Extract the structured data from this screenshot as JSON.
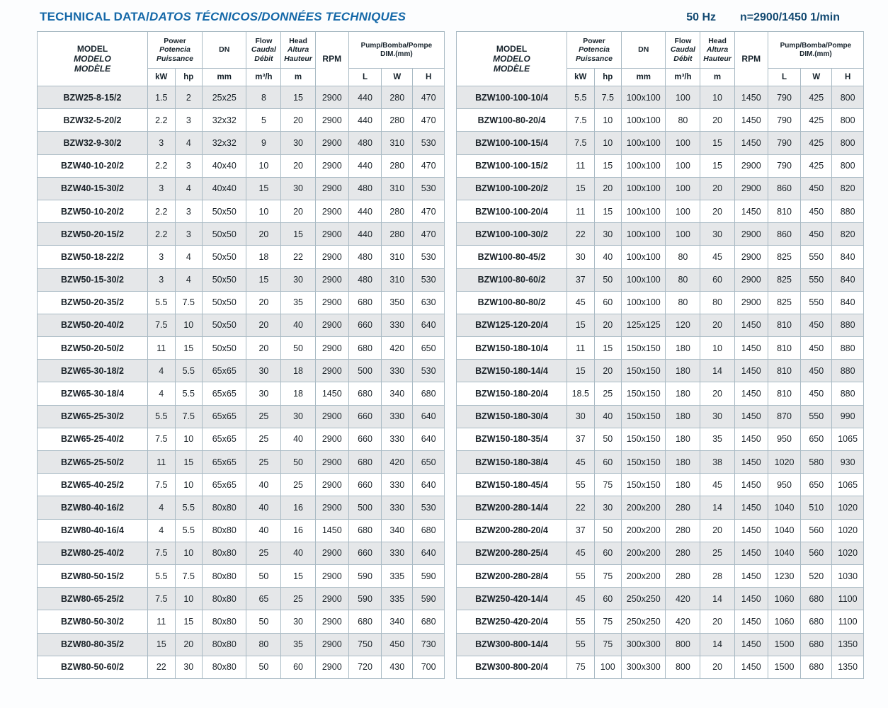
{
  "page": {
    "title_main": "TECHNICAL DATA/",
    "title_intl": "DATOS TÉCNICOS/DONNÉES TECHNIQUES",
    "frequency": "50 Hz",
    "speed": "n=2900/1450 1/min"
  },
  "header": {
    "model_lines": [
      "MODEL",
      "MODELO",
      "MODÈLE"
    ],
    "power_lines": [
      "Power",
      "Potencia",
      "Puissance"
    ],
    "dn": "DN",
    "flow_lines": [
      "Flow",
      "Caudal",
      "Débit"
    ],
    "head_lines": [
      "Head",
      "Altura",
      "Hauteur"
    ],
    "rpm": "RPM",
    "dim_line1": "Pump/Bomba/Pompe",
    "dim_line2": "DIM.(mm)",
    "units": {
      "kw": "kW",
      "hp": "hp",
      "mm": "mm",
      "flow": "m³/h",
      "m": "m",
      "l": "L",
      "w": "W",
      "h": "H"
    }
  },
  "left_table": {
    "rows": [
      [
        "BZW25-8-15/2",
        "1.5",
        "2",
        "25x25",
        "8",
        "15",
        "2900",
        "440",
        "280",
        "470"
      ],
      [
        "BZW32-5-20/2",
        "2.2",
        "3",
        "32x32",
        "5",
        "20",
        "2900",
        "440",
        "280",
        "470"
      ],
      [
        "BZW32-9-30/2",
        "3",
        "4",
        "32x32",
        "9",
        "30",
        "2900",
        "480",
        "310",
        "530"
      ],
      [
        "BZW40-10-20/2",
        "2.2",
        "3",
        "40x40",
        "10",
        "20",
        "2900",
        "440",
        "280",
        "470"
      ],
      [
        "BZW40-15-30/2",
        "3",
        "4",
        "40x40",
        "15",
        "30",
        "2900",
        "480",
        "310",
        "530"
      ],
      [
        "BZW50-10-20/2",
        "2.2",
        "3",
        "50x50",
        "10",
        "20",
        "2900",
        "440",
        "280",
        "470"
      ],
      [
        "BZW50-20-15/2",
        "2.2",
        "3",
        "50x50",
        "20",
        "15",
        "2900",
        "440",
        "280",
        "470"
      ],
      [
        "BZW50-18-22/2",
        "3",
        "4",
        "50x50",
        "18",
        "22",
        "2900",
        "480",
        "310",
        "530"
      ],
      [
        "BZW50-15-30/2",
        "3",
        "4",
        "50x50",
        "15",
        "30",
        "2900",
        "480",
        "310",
        "530"
      ],
      [
        "BZW50-20-35/2",
        "5.5",
        "7.5",
        "50x50",
        "20",
        "35",
        "2900",
        "680",
        "350",
        "630"
      ],
      [
        "BZW50-20-40/2",
        "7.5",
        "10",
        "50x50",
        "20",
        "40",
        "2900",
        "660",
        "330",
        "640"
      ],
      [
        "BZW50-20-50/2",
        "11",
        "15",
        "50x50",
        "20",
        "50",
        "2900",
        "680",
        "420",
        "650"
      ],
      [
        "BZW65-30-18/2",
        "4",
        "5.5",
        "65x65",
        "30",
        "18",
        "2900",
        "500",
        "330",
        "530"
      ],
      [
        "BZW65-30-18/4",
        "4",
        "5.5",
        "65x65",
        "30",
        "18",
        "1450",
        "680",
        "340",
        "680"
      ],
      [
        "BZW65-25-30/2",
        "5.5",
        "7.5",
        "65x65",
        "25",
        "30",
        "2900",
        "660",
        "330",
        "640"
      ],
      [
        "BZW65-25-40/2",
        "7.5",
        "10",
        "65x65",
        "25",
        "40",
        "2900",
        "660",
        "330",
        "640"
      ],
      [
        "BZW65-25-50/2",
        "11",
        "15",
        "65x65",
        "25",
        "50",
        "2900",
        "680",
        "420",
        "650"
      ],
      [
        "BZW65-40-25/2",
        "7.5",
        "10",
        "65x65",
        "40",
        "25",
        "2900",
        "660",
        "330",
        "640"
      ],
      [
        "BZW80-40-16/2",
        "4",
        "5.5",
        "80x80",
        "40",
        "16",
        "2900",
        "500",
        "330",
        "530"
      ],
      [
        "BZW80-40-16/4",
        "4",
        "5.5",
        "80x80",
        "40",
        "16",
        "1450",
        "680",
        "340",
        "680"
      ],
      [
        "BZW80-25-40/2",
        "7.5",
        "10",
        "80x80",
        "25",
        "40",
        "2900",
        "660",
        "330",
        "640"
      ],
      [
        "BZW80-50-15/2",
        "5.5",
        "7.5",
        "80x80",
        "50",
        "15",
        "2900",
        "590",
        "335",
        "590"
      ],
      [
        "BZW80-65-25/2",
        "7.5",
        "10",
        "80x80",
        "65",
        "25",
        "2900",
        "590",
        "335",
        "590"
      ],
      [
        "BZW80-50-30/2",
        "11",
        "15",
        "80x80",
        "50",
        "30",
        "2900",
        "680",
        "340",
        "680"
      ],
      [
        "BZW80-80-35/2",
        "15",
        "20",
        "80x80",
        "80",
        "35",
        "2900",
        "750",
        "450",
        "730"
      ],
      [
        "BZW80-50-60/2",
        "22",
        "30",
        "80x80",
        "50",
        "60",
        "2900",
        "720",
        "430",
        "700"
      ]
    ]
  },
  "right_table": {
    "rows": [
      [
        "BZW100-100-10/4",
        "5.5",
        "7.5",
        "100x100",
        "100",
        "10",
        "1450",
        "790",
        "425",
        "800"
      ],
      [
        "BZW100-80-20/4",
        "7.5",
        "10",
        "100x100",
        "80",
        "20",
        "1450",
        "790",
        "425",
        "800"
      ],
      [
        "BZW100-100-15/4",
        "7.5",
        "10",
        "100x100",
        "100",
        "15",
        "1450",
        "790",
        "425",
        "800"
      ],
      [
        "BZW100-100-15/2",
        "11",
        "15",
        "100x100",
        "100",
        "15",
        "2900",
        "790",
        "425",
        "800"
      ],
      [
        "BZW100-100-20/2",
        "15",
        "20",
        "100x100",
        "100",
        "20",
        "2900",
        "860",
        "450",
        "820"
      ],
      [
        "BZW100-100-20/4",
        "11",
        "15",
        "100x100",
        "100",
        "20",
        "1450",
        "810",
        "450",
        "880"
      ],
      [
        "BZW100-100-30/2",
        "22",
        "30",
        "100x100",
        "100",
        "30",
        "2900",
        "860",
        "450",
        "820"
      ],
      [
        "BZW100-80-45/2",
        "30",
        "40",
        "100x100",
        "80",
        "45",
        "2900",
        "825",
        "550",
        "840"
      ],
      [
        "BZW100-80-60/2",
        "37",
        "50",
        "100x100",
        "80",
        "60",
        "2900",
        "825",
        "550",
        "840"
      ],
      [
        "BZW100-80-80/2",
        "45",
        "60",
        "100x100",
        "80",
        "80",
        "2900",
        "825",
        "550",
        "840"
      ],
      [
        "BZW125-120-20/4",
        "15",
        "20",
        "125x125",
        "120",
        "20",
        "1450",
        "810",
        "450",
        "880"
      ],
      [
        "BZW150-180-10/4",
        "11",
        "15",
        "150x150",
        "180",
        "10",
        "1450",
        "810",
        "450",
        "880"
      ],
      [
        "BZW150-180-14/4",
        "15",
        "20",
        "150x150",
        "180",
        "14",
        "1450",
        "810",
        "450",
        "880"
      ],
      [
        "BZW150-180-20/4",
        "18.5",
        "25",
        "150x150",
        "180",
        "20",
        "1450",
        "810",
        "450",
        "880"
      ],
      [
        "BZW150-180-30/4",
        "30",
        "40",
        "150x150",
        "180",
        "30",
        "1450",
        "870",
        "550",
        "990"
      ],
      [
        "BZW150-180-35/4",
        "37",
        "50",
        "150x150",
        "180",
        "35",
        "1450",
        "950",
        "650",
        "1065"
      ],
      [
        "BZW150-180-38/4",
        "45",
        "60",
        "150x150",
        "180",
        "38",
        "1450",
        "1020",
        "580",
        "930"
      ],
      [
        "BZW150-180-45/4",
        "55",
        "75",
        "150x150",
        "180",
        "45",
        "1450",
        "950",
        "650",
        "1065"
      ],
      [
        "BZW200-280-14/4",
        "22",
        "30",
        "200x200",
        "280",
        "14",
        "1450",
        "1040",
        "510",
        "1020"
      ],
      [
        "BZW200-280-20/4",
        "37",
        "50",
        "200x200",
        "280",
        "20",
        "1450",
        "1040",
        "560",
        "1020"
      ],
      [
        "BZW200-280-25/4",
        "45",
        "60",
        "200x200",
        "280",
        "25",
        "1450",
        "1040",
        "560",
        "1020"
      ],
      [
        "BZW200-280-28/4",
        "55",
        "75",
        "200x200",
        "280",
        "28",
        "1450",
        "1230",
        "520",
        "1030"
      ],
      [
        "BZW250-420-14/4",
        "45",
        "60",
        "250x250",
        "420",
        "14",
        "1450",
        "1060",
        "680",
        "1100"
      ],
      [
        "BZW250-420-20/4",
        "55",
        "75",
        "250x250",
        "420",
        "20",
        "1450",
        "1060",
        "680",
        "1100"
      ],
      [
        "BZW300-800-14/4",
        "55",
        "75",
        "300x300",
        "800",
        "14",
        "1450",
        "1500",
        "680",
        "1350"
      ],
      [
        "BZW300-800-20/4",
        "75",
        "100",
        "300x300",
        "800",
        "20",
        "1450",
        "1500",
        "680",
        "1350"
      ]
    ]
  }
}
